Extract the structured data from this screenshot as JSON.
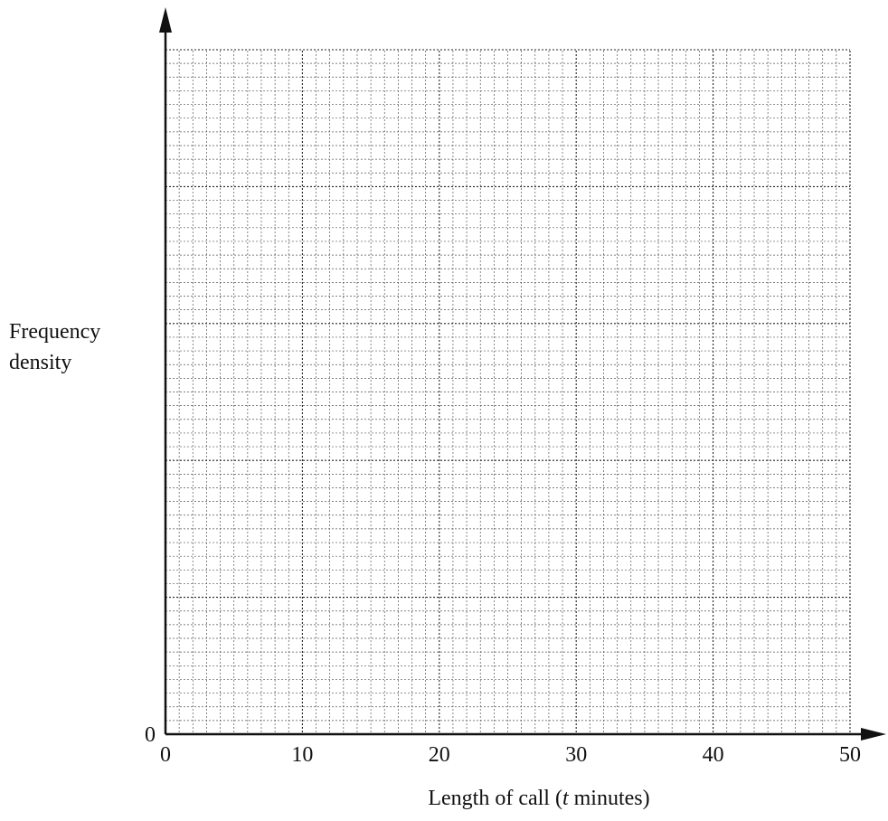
{
  "chart_data": {
    "type": "bar",
    "title": "",
    "xlabel": "Length of call (t minutes)",
    "xlabel_parts": {
      "before": "Length of call (",
      "italic": "t",
      "after": " minutes)"
    },
    "ylabel_lines": [
      "Frequency",
      "density"
    ],
    "x_ticks": [
      "0",
      "10",
      "20",
      "30",
      "40",
      "50"
    ],
    "y_tick_zero": "0",
    "xlim": [
      0,
      50
    ],
    "x_major_step": 10,
    "x_minor_step": 1,
    "grid": true,
    "categories": [],
    "values": []
  }
}
